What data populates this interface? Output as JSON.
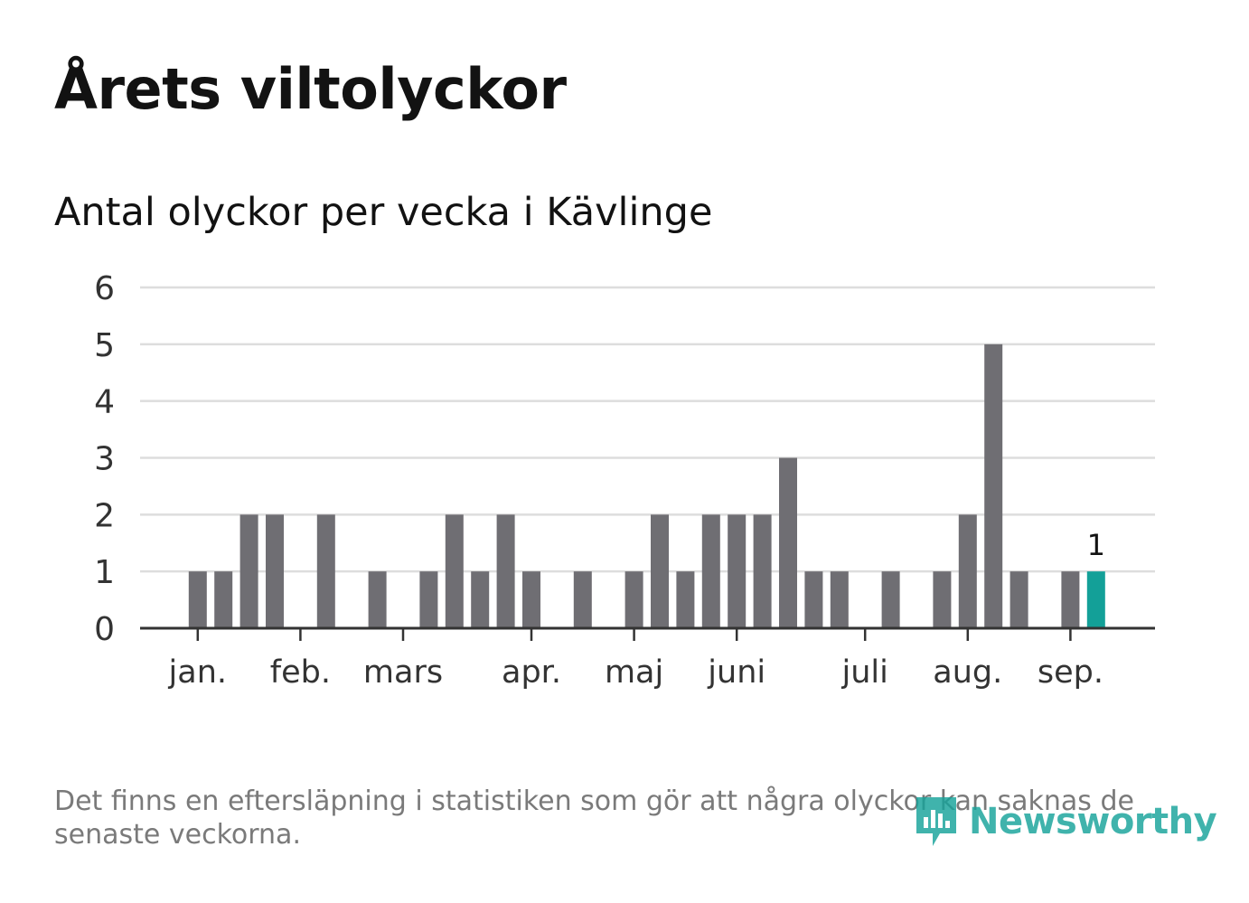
{
  "title": "Årets viltolyckor",
  "subtitle": "Antal olyckor per vecka i Kävlinge",
  "footnote": "Det finns en eftersläpning i statistiken som gör att några olyckor kan saknas de senaste veckorna.",
  "logo": {
    "text": "Newsworthy",
    "icon": "newsworthy-logo-icon"
  },
  "colors": {
    "bar": "#6f6e73",
    "highlight": "#13a098",
    "grid": "#dddddd",
    "axis": "#333333",
    "text": "#121212",
    "muted": "#7a7a7a",
    "brand": "#17a39a"
  },
  "chart_data": {
    "type": "bar",
    "x_unit": "week",
    "x": [
      1,
      2,
      3,
      4,
      5,
      6,
      7,
      8,
      9,
      10,
      11,
      12,
      13,
      14,
      15,
      16,
      17,
      18,
      19,
      20,
      21,
      22,
      23,
      24,
      25,
      26,
      27,
      28,
      29,
      30,
      31,
      32,
      33,
      34,
      35,
      36,
      37,
      38
    ],
    "values": [
      0,
      0,
      1,
      1,
      2,
      2,
      0,
      2,
      0,
      1,
      0,
      1,
      2,
      1,
      2,
      1,
      0,
      1,
      0,
      1,
      2,
      1,
      2,
      2,
      2,
      3,
      1,
      1,
      0,
      1,
      0,
      1,
      2,
      5,
      1,
      0,
      1,
      1
    ],
    "highlight_last": true,
    "data_labels": [
      {
        "x": 38,
        "label": "1"
      }
    ],
    "yticks": [
      0,
      1,
      2,
      3,
      4,
      5,
      6
    ],
    "ylim": [
      0,
      6
    ],
    "month_ticks": [
      {
        "label": "jan.",
        "x": 3
      },
      {
        "label": "feb.",
        "x": 7
      },
      {
        "label": "mars",
        "x": 11
      },
      {
        "label": "apr.",
        "x": 16
      },
      {
        "label": "maj",
        "x": 20
      },
      {
        "label": "juni",
        "x": 24
      },
      {
        "label": "juli",
        "x": 29
      },
      {
        "label": "aug.",
        "x": 33
      },
      {
        "label": "sep.",
        "x": 37
      }
    ],
    "xlabel": "",
    "ylabel": "",
    "grid": true,
    "legend": "none"
  }
}
